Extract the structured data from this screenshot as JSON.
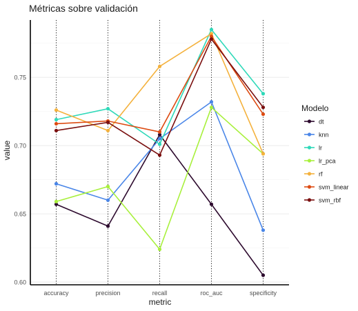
{
  "chart_data": {
    "type": "line",
    "title": "Métricas sobre validación",
    "xlabel": "metric",
    "ylabel": "value",
    "categories": [
      "accuracy",
      "precision",
      "recall",
      "roc_auc",
      "specificity"
    ],
    "ylim": [
      0.598,
      0.792
    ],
    "yticks": [
      0.6,
      0.65,
      0.7,
      0.75
    ],
    "ytick_labels": [
      "0.60",
      "0.65",
      "0.70",
      "0.75"
    ],
    "grid": true,
    "legend_title": "Modelo",
    "legend_position": "right",
    "series": [
      {
        "name": "dt",
        "color": "#2d0a2e",
        "values": [
          0.657,
          0.641,
          0.708,
          0.657,
          0.605
        ]
      },
      {
        "name": "knn",
        "color": "#4a86e8",
        "values": [
          0.672,
          0.66,
          0.705,
          0.732,
          0.638
        ]
      },
      {
        "name": "lr",
        "color": "#2fd9b9",
        "values": [
          0.719,
          0.727,
          0.701,
          0.785,
          0.738
        ]
      },
      {
        "name": "lr_pca",
        "color": "#a8f03c",
        "values": [
          0.659,
          0.67,
          0.624,
          0.728,
          0.694
        ]
      },
      {
        "name": "rf",
        "color": "#f4b13c",
        "values": [
          0.726,
          0.711,
          0.758,
          0.782,
          0.694
        ]
      },
      {
        "name": "svm_linear",
        "color": "#dd4b12",
        "values": [
          0.716,
          0.718,
          0.71,
          0.78,
          0.723
        ]
      },
      {
        "name": "svm_rbf",
        "color": "#7a0f0f",
        "values": [
          0.711,
          0.717,
          0.693,
          0.778,
          0.728
        ]
      }
    ]
  }
}
